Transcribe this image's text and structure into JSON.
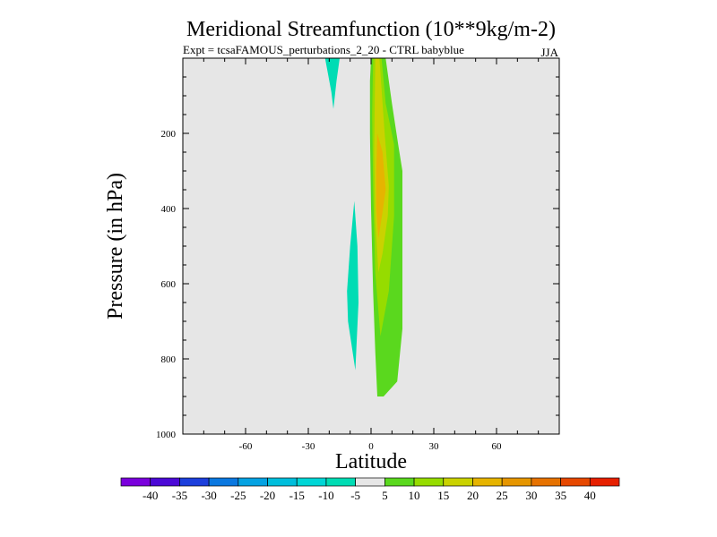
{
  "chart_data": {
    "type": "contour",
    "title": "Meridional Streamfunction (10**9kg/m-2)",
    "subtitle_left": "Expt = tcsaFAMOUS_perturbations_2_20 - CTRL babyblue",
    "subtitle_right": "JJA",
    "xlabel": "Latitude",
    "ylabel": "Pressure (in hPa)",
    "xlim": [
      -90,
      90
    ],
    "ylim": [
      1000,
      0
    ],
    "xticks": [
      "-60",
      "-30",
      "0",
      "30",
      "60"
    ],
    "xtick_values": [
      -60,
      -30,
      0,
      30,
      60
    ],
    "yticks": [
      "200",
      "400",
      "600",
      "800",
      "1000"
    ],
    "ytick_values": [
      200,
      400,
      600,
      800,
      1000
    ],
    "levels": [
      -40,
      -35,
      -30,
      -25,
      -20,
      -15,
      -10,
      -5,
      5,
      10,
      15,
      20,
      25,
      30,
      35,
      40
    ],
    "level_labels": [
      "-40",
      "-35",
      "-30",
      "-25",
      "-20",
      "-15",
      "-10",
      "-5",
      "5",
      "10",
      "15",
      "20",
      "25",
      "30",
      "35",
      "40"
    ],
    "colors": [
      "#7a00dc",
      "#4b08d6",
      "#1c3fdc",
      "#0a78e0",
      "#04a2e2",
      "#00bedc",
      "#00d6d6",
      "#00dcb4",
      "#e6e6e6",
      "#5ad81e",
      "#96dc00",
      "#cad200",
      "#e6b400",
      "#e69600",
      "#e67200",
      "#e64800",
      "#e62000"
    ],
    "background_color": "#e6e6e6",
    "regions": [
      {
        "name": "nh-upper-negative",
        "level": "-10 to -5",
        "color": "#00dcb4",
        "polygon": [
          [
            -22,
            0
          ],
          [
            -15,
            0
          ],
          [
            -16.5,
            60
          ],
          [
            -18,
            135
          ],
          [
            -19,
            90
          ]
        ]
      },
      {
        "name": "sh-lower-negative",
        "level": "-10 to -5",
        "color": "#00dcb4",
        "polygon": [
          [
            -8,
            380
          ],
          [
            -6.5,
            500
          ],
          [
            -6,
            650
          ],
          [
            -7.5,
            830
          ],
          [
            -11,
            700
          ],
          [
            -11.5,
            620
          ],
          [
            -10,
            500
          ]
        ]
      },
      {
        "name": "positive-5-10",
        "level": "5 to 10",
        "color": "#5ad81e",
        "polygon": [
          [
            0,
            0
          ],
          [
            7,
            0
          ],
          [
            10,
            120
          ],
          [
            13,
            230
          ],
          [
            15,
            300
          ],
          [
            15,
            720
          ],
          [
            12.5,
            860
          ],
          [
            6,
            900
          ],
          [
            3,
            900
          ],
          [
            2,
            780
          ],
          [
            1,
            620
          ],
          [
            0,
            400
          ],
          [
            -0.5,
            200
          ],
          [
            -0.5,
            60
          ]
        ]
      },
      {
        "name": "positive-10-15",
        "level": "10 to 15",
        "color": "#96dc00",
        "polygon": [
          [
            1,
            0
          ],
          [
            5,
            0
          ],
          [
            7,
            120
          ],
          [
            11,
            230
          ],
          [
            11,
            420
          ],
          [
            8.5,
            620
          ],
          [
            4.5,
            740
          ],
          [
            2,
            570
          ],
          [
            1,
            350
          ],
          [
            0.5,
            150
          ]
        ]
      },
      {
        "name": "positive-15-20",
        "level": "15 to 20",
        "color": "#cad200",
        "polygon": [
          [
            2,
            0
          ],
          [
            4,
            0
          ],
          [
            6.5,
            200
          ],
          [
            8.5,
            340
          ],
          [
            8,
            420
          ],
          [
            5.5,
            520
          ],
          [
            3.5,
            570
          ],
          [
            2,
            430
          ],
          [
            1.5,
            250
          ]
        ]
      },
      {
        "name": "positive-20-25",
        "level": "20 to 25",
        "color": "#e6b400",
        "polygon": [
          [
            3,
            200
          ],
          [
            5.5,
            250
          ],
          [
            7,
            350
          ],
          [
            5.5,
            410
          ],
          [
            3.5,
            480
          ],
          [
            2.5,
            400
          ],
          [
            2.5,
            300
          ]
        ]
      }
    ]
  }
}
